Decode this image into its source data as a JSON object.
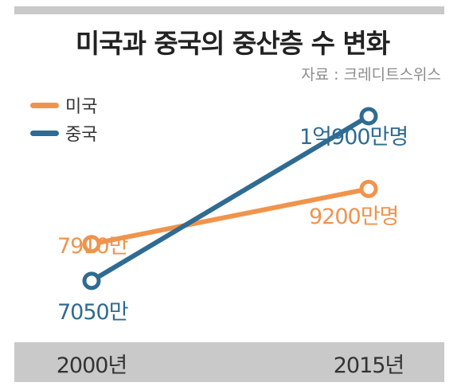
{
  "title": "미국과 중국의 중산층 수 변화",
  "source": "자료 : 크레디트스위스",
  "colors": {
    "us": "#f0944d",
    "china": "#2f6b92"
  },
  "chart_data": {
    "type": "line",
    "title": "미국과 중국의 중산층 수 변화",
    "x": [
      "2000년",
      "2015년"
    ],
    "series": [
      {
        "name": "미국",
        "values": [
          7910,
          9200
        ],
        "labels": [
          "7910만",
          "9200만명"
        ]
      },
      {
        "name": "중국",
        "values": [
          7050,
          10900
        ],
        "labels": [
          "7050만",
          "1억900만명"
        ]
      }
    ],
    "ylim": [
      5800,
      12500
    ],
    "unit": "만명",
    "grid": false,
    "legend": "top-left"
  }
}
